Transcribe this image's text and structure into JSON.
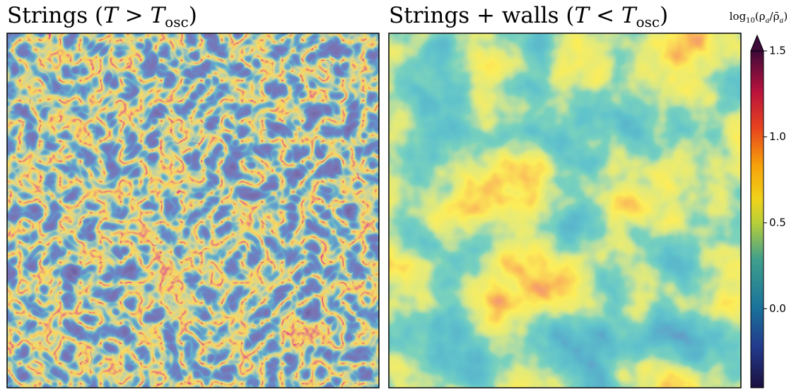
{
  "panels": [
    {
      "title": [
        "Strings (",
        "T",
        " > ",
        "T",
        "osc",
        ")"
      ]
    },
    {
      "title": [
        "Strings + walls (",
        "T",
        " < ",
        "T",
        "osc",
        ")"
      ]
    }
  ],
  "colorbar": {
    "label": [
      "log",
      "10",
      "(ρ",
      "a",
      "/ρ̄",
      "a",
      ")"
    ],
    "lim": [
      -0.46,
      1.5
    ],
    "ticks": [
      {
        "value": 0,
        "label": "0.0"
      },
      0.5,
      {
        "value": 1,
        "label": "1.0"
      },
      1.5
    ]
  }
}
